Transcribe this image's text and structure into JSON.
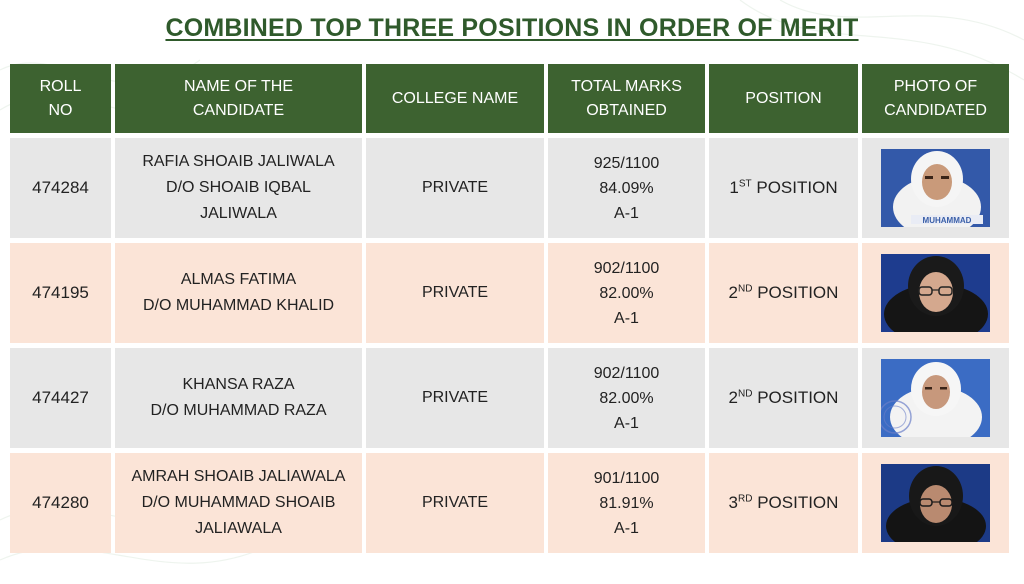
{
  "title": "COMBINED TOP THREE POSITIONS IN ORDER OF MERIT",
  "headers": {
    "roll_1": "ROLL",
    "roll_2": "NO",
    "name_1": "NAME OF THE",
    "name_2": "CANDIDATE",
    "college": "COLLEGE NAME",
    "marks_1": "TOTAL MARKS",
    "marks_2": "OBTAINED",
    "position": "POSITION",
    "photo_1": "PHOTO OF",
    "photo_2": "CANDIDATED"
  },
  "rows": [
    {
      "roll": "474284",
      "name_lines": [
        "RAFIA SHOAIB JALIWALA",
        "D/O SHOAIB IQBAL",
        "JALIWALA"
      ],
      "college": "PRIVATE",
      "marks": "925/1100",
      "percent": "84.09%",
      "grade": "A-1",
      "pos_num": "1",
      "pos_sup": "ST",
      "pos_word": " POSITION",
      "photo_caption": "MUHAMMAD"
    },
    {
      "roll": "474195",
      "name_lines": [
        "ALMAS FATIMA",
        "D/O MUHAMMAD KHALID"
      ],
      "college": "PRIVATE",
      "marks": "902/1100",
      "percent": "82.00%",
      "grade": "A-1",
      "pos_num": "2",
      "pos_sup": "ND",
      "pos_word": " POSITION"
    },
    {
      "roll": "474427",
      "name_lines": [
        "KHANSA RAZA",
        "D/O MUHAMMAD RAZA"
      ],
      "college": "PRIVATE",
      "marks": "902/1100",
      "percent": "82.00%",
      "grade": "A-1",
      "pos_num": "2",
      "pos_sup": "ND",
      "pos_word": " POSITION"
    },
    {
      "roll": "474280",
      "name_lines": [
        "AMRAH SHOAIB JALIAWALA",
        "D/O MUHAMMAD SHOAIB",
        "JALIAWALA"
      ],
      "college": "PRIVATE",
      "marks": "901/1100",
      "percent": "81.91%",
      "grade": "A-1",
      "pos_num": "3",
      "pos_sup": "RD",
      "pos_word": " POSITION"
    }
  ],
  "colors": {
    "header_bg": "#3d6230",
    "title": "#2f5a2b",
    "row_grey": "#e7e7e7",
    "row_pink": "#fbe4d7"
  }
}
